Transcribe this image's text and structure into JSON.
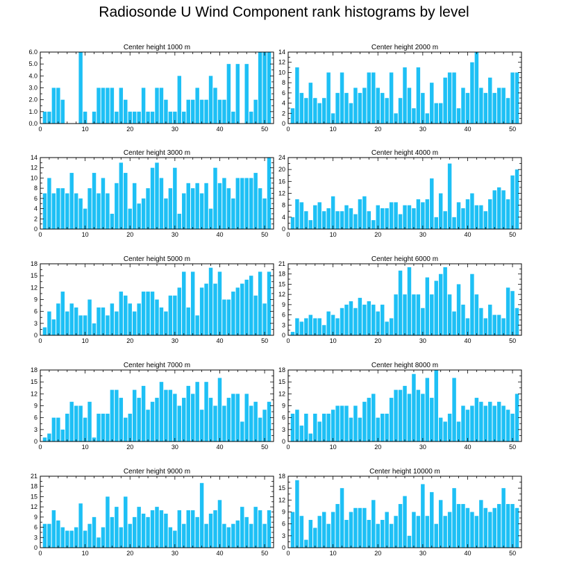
{
  "title": "Radiosonde U Wind Component rank histograms by level",
  "colors": {
    "bar": "#1ec0f5",
    "axis": "#000000",
    "background": "#ffffff"
  },
  "chart_data": [
    {
      "type": "bar",
      "title": "Center height 1000 m",
      "xlim": [
        0,
        52
      ],
      "ylim": [
        0,
        6
      ],
      "xticks": [
        0,
        10,
        20,
        30,
        40,
        50
      ],
      "yticks": [
        0,
        1,
        2,
        3,
        4,
        5,
        6
      ],
      "ytick_labels": [
        "0.0",
        "1.0",
        "2.0",
        "3.0",
        "4.0",
        "5.0",
        "6.0"
      ],
      "x": [
        1,
        2,
        3,
        4,
        5,
        6,
        7,
        8,
        9,
        10,
        11,
        12,
        13,
        14,
        15,
        16,
        17,
        18,
        19,
        20,
        21,
        22,
        23,
        24,
        25,
        26,
        27,
        28,
        29,
        30,
        31,
        32,
        33,
        34,
        35,
        36,
        37,
        38,
        39,
        40,
        41,
        42,
        43,
        44,
        45,
        46,
        47,
        48,
        49,
        50,
        51
      ],
      "values": [
        1,
        1,
        3,
        3,
        2,
        0,
        0,
        0,
        6,
        1,
        0,
        1,
        3,
        3,
        3,
        3,
        1,
        3,
        2,
        1,
        1,
        1,
        3,
        1,
        1,
        3,
        3,
        2,
        1,
        1,
        4,
        1,
        2,
        2,
        3,
        2,
        2,
        4,
        3,
        2,
        2,
        5,
        1,
        5,
        0,
        5,
        1,
        2,
        6,
        6,
        6
      ]
    },
    {
      "type": "bar",
      "title": "Center height 2000 m",
      "xlim": [
        0,
        52
      ],
      "ylim": [
        0,
        14
      ],
      "xticks": [
        0,
        10,
        20,
        30,
        40,
        50
      ],
      "yticks": [
        0,
        2,
        4,
        6,
        8,
        10,
        12,
        14
      ],
      "ytick_labels": [
        "0",
        "2",
        "4",
        "6",
        "8",
        "10",
        "12",
        "14"
      ],
      "x": [
        1,
        2,
        3,
        4,
        5,
        6,
        7,
        8,
        9,
        10,
        11,
        12,
        13,
        14,
        15,
        16,
        17,
        18,
        19,
        20,
        21,
        22,
        23,
        24,
        25,
        26,
        27,
        28,
        29,
        30,
        31,
        32,
        33,
        34,
        35,
        36,
        37,
        38,
        39,
        40,
        41,
        42,
        43,
        44,
        45,
        46,
        47,
        48,
        49,
        50,
        51
      ],
      "values": [
        3,
        11,
        6,
        5,
        8,
        5,
        4,
        5,
        10,
        2,
        6,
        10,
        6,
        4,
        7,
        6,
        7,
        10,
        10,
        7,
        6,
        5,
        10,
        2,
        5,
        11,
        7,
        3,
        11,
        6,
        2,
        8,
        4,
        4,
        9,
        10,
        10,
        3,
        7,
        6,
        12,
        14,
        7,
        6,
        9,
        6,
        7,
        7,
        5,
        10,
        10
      ]
    },
    {
      "type": "bar",
      "title": "Center height 3000 m",
      "xlim": [
        0,
        52
      ],
      "ylim": [
        0,
        14
      ],
      "xticks": [
        0,
        10,
        20,
        30,
        40,
        50
      ],
      "yticks": [
        0,
        2,
        4,
        6,
        8,
        10,
        12,
        14
      ],
      "ytick_labels": [
        "0",
        "2",
        "4",
        "6",
        "8",
        "10",
        "12",
        "14"
      ],
      "x": [
        1,
        2,
        3,
        4,
        5,
        6,
        7,
        8,
        9,
        10,
        11,
        12,
        13,
        14,
        15,
        16,
        17,
        18,
        19,
        20,
        21,
        22,
        23,
        24,
        25,
        26,
        27,
        28,
        29,
        30,
        31,
        32,
        33,
        34,
        35,
        36,
        37,
        38,
        39,
        40,
        41,
        42,
        43,
        44,
        45,
        46,
        47,
        48,
        49,
        50,
        51
      ],
      "values": [
        7,
        10,
        7,
        8,
        8,
        7,
        11,
        7,
        6,
        4,
        8,
        11,
        7,
        10,
        7,
        3,
        9,
        13,
        11,
        4,
        9,
        5,
        6,
        8,
        12,
        13,
        10,
        6,
        8,
        12,
        3,
        7,
        9,
        8,
        9,
        7,
        9,
        4,
        12,
        9,
        10,
        8,
        6,
        10,
        10,
        10,
        10,
        11,
        8,
        6,
        14
      ]
    },
    {
      "type": "bar",
      "title": "Center height 4000 m",
      "xlim": [
        0,
        52
      ],
      "ylim": [
        0,
        24
      ],
      "xticks": [
        0,
        10,
        20,
        30,
        40,
        50
      ],
      "yticks": [
        0,
        4,
        8,
        12,
        16,
        20,
        24
      ],
      "ytick_labels": [
        "0",
        "4",
        "8",
        "12",
        "16",
        "20",
        "24"
      ],
      "x": [
        1,
        2,
        3,
        4,
        5,
        6,
        7,
        8,
        9,
        10,
        11,
        12,
        13,
        14,
        15,
        16,
        17,
        18,
        19,
        20,
        21,
        22,
        23,
        24,
        25,
        26,
        27,
        28,
        29,
        30,
        31,
        32,
        33,
        34,
        35,
        36,
        37,
        38,
        39,
        40,
        41,
        42,
        43,
        44,
        45,
        46,
        47,
        48,
        49,
        50,
        51
      ],
      "values": [
        4,
        10,
        9,
        6,
        3,
        8,
        9,
        6,
        7,
        11,
        6,
        6,
        8,
        7,
        5,
        10,
        11,
        6,
        3,
        8,
        7,
        7,
        9,
        9,
        5,
        8,
        8,
        7,
        10,
        9,
        10,
        17,
        4,
        12,
        6,
        22,
        4,
        9,
        7,
        10,
        12,
        8,
        8,
        6,
        10,
        13,
        14,
        13,
        10,
        18,
        20
      ]
    },
    {
      "type": "bar",
      "title": "Center height 5000 m",
      "xlim": [
        0,
        52
      ],
      "ylim": [
        0,
        18
      ],
      "xticks": [
        0,
        10,
        20,
        30,
        40,
        50
      ],
      "yticks": [
        0,
        3,
        6,
        9,
        12,
        15,
        18
      ],
      "ytick_labels": [
        "0",
        "3",
        "6",
        "9",
        "12",
        "15",
        "18"
      ],
      "x": [
        1,
        2,
        3,
        4,
        5,
        6,
        7,
        8,
        9,
        10,
        11,
        12,
        13,
        14,
        15,
        16,
        17,
        18,
        19,
        20,
        21,
        22,
        23,
        24,
        25,
        26,
        27,
        28,
        29,
        30,
        31,
        32,
        33,
        34,
        35,
        36,
        37,
        38,
        39,
        40,
        41,
        42,
        43,
        44,
        45,
        46,
        47,
        48,
        49,
        50,
        51
      ],
      "values": [
        2,
        6,
        4,
        8,
        11,
        6,
        8,
        7,
        5,
        5,
        9,
        3,
        7,
        7,
        5,
        8,
        6,
        11,
        10,
        8,
        6,
        8,
        11,
        11,
        11,
        9,
        7,
        6,
        10,
        10,
        12,
        16,
        7,
        16,
        5,
        12,
        13,
        17,
        13,
        16,
        9,
        9,
        11,
        12,
        13,
        14,
        15,
        10,
        16,
        8,
        16
      ]
    },
    {
      "type": "bar",
      "title": "Center height 6000 m",
      "xlim": [
        0,
        52
      ],
      "ylim": [
        0,
        21
      ],
      "xticks": [
        0,
        10,
        20,
        30,
        40,
        50
      ],
      "yticks": [
        0,
        3,
        6,
        9,
        12,
        15,
        18,
        21
      ],
      "ytick_labels": [
        "0",
        "3",
        "6",
        "9",
        "12",
        "15",
        "18",
        "21"
      ],
      "x": [
        1,
        2,
        3,
        4,
        5,
        6,
        7,
        8,
        9,
        10,
        11,
        12,
        13,
        14,
        15,
        16,
        17,
        18,
        19,
        20,
        21,
        22,
        23,
        24,
        25,
        26,
        27,
        28,
        29,
        30,
        31,
        32,
        33,
        34,
        35,
        36,
        37,
        38,
        39,
        40,
        41,
        42,
        43,
        44,
        45,
        46,
        47,
        48,
        49,
        50,
        51
      ],
      "values": [
        1,
        5,
        4,
        5,
        6,
        5,
        5,
        3,
        7,
        6,
        5,
        8,
        9,
        10,
        8,
        11,
        9,
        10,
        9,
        7,
        9,
        4,
        5,
        12,
        19,
        12,
        20,
        12,
        12,
        8,
        17,
        12,
        16,
        18,
        20,
        12,
        7,
        15,
        9,
        5,
        18,
        12,
        8,
        5,
        9,
        6,
        6,
        5,
        14,
        13,
        8
      ]
    },
    {
      "type": "bar",
      "title": "Center height 7000 m",
      "xlim": [
        0,
        52
      ],
      "ylim": [
        0,
        18
      ],
      "xticks": [
        0,
        10,
        20,
        30,
        40,
        50
      ],
      "yticks": [
        0,
        3,
        6,
        9,
        12,
        15,
        18
      ],
      "ytick_labels": [
        "0",
        "3",
        "6",
        "9",
        "12",
        "15",
        "18"
      ],
      "x": [
        1,
        2,
        3,
        4,
        5,
        6,
        7,
        8,
        9,
        10,
        11,
        12,
        13,
        14,
        15,
        16,
        17,
        18,
        19,
        20,
        21,
        22,
        23,
        24,
        25,
        26,
        27,
        28,
        29,
        30,
        31,
        32,
        33,
        34,
        35,
        36,
        37,
        38,
        39,
        40,
        41,
        42,
        43,
        44,
        45,
        46,
        47,
        48,
        49,
        50,
        51
      ],
      "values": [
        1,
        2,
        6,
        6,
        3,
        7,
        10,
        9,
        9,
        6,
        10,
        1,
        7,
        7,
        7,
        13,
        13,
        11,
        6,
        7,
        13,
        11,
        14,
        8,
        10,
        11,
        15,
        13,
        13,
        12,
        9,
        11,
        14,
        12,
        15,
        8,
        15,
        11,
        9,
        16,
        9,
        11,
        12,
        12,
        5,
        12,
        9,
        10,
        6,
        8,
        10
      ]
    },
    {
      "type": "bar",
      "title": "Center height 8000 m",
      "xlim": [
        0,
        52
      ],
      "ylim": [
        0,
        18
      ],
      "xticks": [
        0,
        10,
        20,
        30,
        40,
        50
      ],
      "yticks": [
        0,
        3,
        6,
        9,
        12,
        15,
        18
      ],
      "ytick_labels": [
        "0",
        "3",
        "6",
        "9",
        "12",
        "15",
        "18"
      ],
      "x": [
        1,
        2,
        3,
        4,
        5,
        6,
        7,
        8,
        9,
        10,
        11,
        12,
        13,
        14,
        15,
        16,
        17,
        18,
        19,
        20,
        21,
        22,
        23,
        24,
        25,
        26,
        27,
        28,
        29,
        30,
        31,
        32,
        33,
        34,
        35,
        36,
        37,
        38,
        39,
        40,
        41,
        42,
        43,
        44,
        45,
        46,
        47,
        48,
        49,
        50,
        51
      ],
      "values": [
        7,
        8,
        4,
        7,
        2,
        7,
        5,
        7,
        7,
        8,
        9,
        9,
        9,
        6,
        9,
        6,
        10,
        11,
        12,
        6,
        7,
        7,
        11,
        13,
        13,
        14,
        12,
        17,
        13,
        12,
        16,
        11,
        18,
        6,
        5,
        7,
        16,
        5,
        9,
        8,
        9,
        11,
        10,
        9,
        10,
        9,
        10,
        9,
        8,
        7,
        12
      ]
    },
    {
      "type": "bar",
      "title": "Center height 9000 m",
      "xlim": [
        0,
        52
      ],
      "ylim": [
        0,
        21
      ],
      "xticks": [
        0,
        10,
        20,
        30,
        40,
        50
      ],
      "yticks": [
        0,
        3,
        6,
        9,
        12,
        15,
        18,
        21
      ],
      "ytick_labels": [
        "0",
        "3",
        "6",
        "9",
        "12",
        "15",
        "18",
        "21"
      ],
      "x": [
        1,
        2,
        3,
        4,
        5,
        6,
        7,
        8,
        9,
        10,
        11,
        12,
        13,
        14,
        15,
        16,
        17,
        18,
        19,
        20,
        21,
        22,
        23,
        24,
        25,
        26,
        27,
        28,
        29,
        30,
        31,
        32,
        33,
        34,
        35,
        36,
        37,
        38,
        39,
        40,
        41,
        42,
        43,
        44,
        45,
        46,
        47,
        48,
        49,
        50,
        51
      ],
      "values": [
        7,
        7,
        11,
        8,
        6,
        5,
        5,
        6,
        13,
        5,
        7,
        9,
        3,
        6,
        15,
        9,
        12,
        6,
        15,
        7,
        9,
        12,
        10,
        9,
        11,
        12,
        11,
        10,
        6,
        5,
        11,
        7,
        11,
        11,
        9,
        19,
        7,
        10,
        11,
        14,
        7,
        6,
        7,
        8,
        12,
        9,
        7,
        12,
        11,
        7,
        11
      ]
    },
    {
      "type": "bar",
      "title": "Center height 10000 m",
      "xlim": [
        0,
        52
      ],
      "ylim": [
        0,
        18
      ],
      "xticks": [
        0,
        10,
        20,
        30,
        40,
        50
      ],
      "yticks": [
        0,
        3,
        6,
        9,
        12,
        15,
        18
      ],
      "ytick_labels": [
        "0",
        "3",
        "6",
        "9",
        "12",
        "15",
        "18"
      ],
      "x": [
        1,
        2,
        3,
        4,
        5,
        6,
        7,
        8,
        9,
        10,
        11,
        12,
        13,
        14,
        15,
        16,
        17,
        18,
        19,
        20,
        21,
        22,
        23,
        24,
        25,
        26,
        27,
        28,
        29,
        30,
        31,
        32,
        33,
        34,
        35,
        36,
        37,
        38,
        39,
        40,
        41,
        42,
        43,
        44,
        45,
        46,
        47,
        48,
        49,
        50,
        51
      ],
      "values": [
        9,
        17,
        8,
        2,
        7,
        5,
        8,
        9,
        6,
        9,
        11,
        15,
        7,
        9,
        10,
        10,
        10,
        7,
        12,
        6,
        7,
        9,
        6,
        8,
        11,
        13,
        3,
        9,
        8,
        16,
        8,
        14,
        6,
        12,
        8,
        9,
        15,
        11,
        11,
        10,
        9,
        8,
        12,
        10,
        9,
        10,
        11,
        15,
        11,
        11,
        10
      ]
    }
  ]
}
